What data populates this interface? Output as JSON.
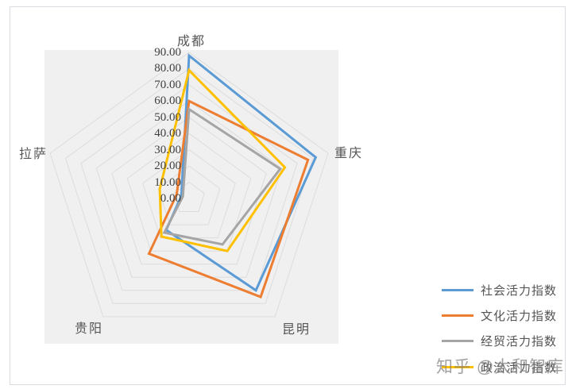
{
  "chart_data": {
    "type": "radar",
    "title": "",
    "categories": [
      "成都",
      "重庆",
      "昆明",
      "贵阳",
      "拉萨"
    ],
    "series": [
      {
        "name": "社会活力指数",
        "color": "#5B9BD5",
        "values": [
          88,
          82,
          70,
          24,
          5
        ]
      },
      {
        "name": "文化活力指数",
        "color": "#ED7D31",
        "values": [
          60,
          77,
          75,
          42,
          8
        ]
      },
      {
        "name": "经贸活力指数",
        "color": "#A5A5A5",
        "values": [
          55,
          59,
          35,
          26,
          4
        ]
      },
      {
        "name": "政治活力指数",
        "color": "#FFC000",
        "values": [
          79,
          62,
          40,
          29,
          19
        ]
      }
    ],
    "radial_axis": {
      "min": 0,
      "max": 90,
      "step": 10,
      "tick_labels": [
        "90.00",
        "80.00",
        "70.00",
        "60.00",
        "50.00",
        "40.00",
        "30.00",
        "20.00",
        "10.00",
        "0.00"
      ]
    },
    "grid": true,
    "legend_position": "right"
  },
  "watermark": {
    "text": "知乎 @太和智库"
  },
  "colors": {
    "plot_bg": "#F0F0F0",
    "grid_line": "#DCDCDC",
    "tick_text": "#3F3F3F",
    "label_text": "#555555"
  }
}
